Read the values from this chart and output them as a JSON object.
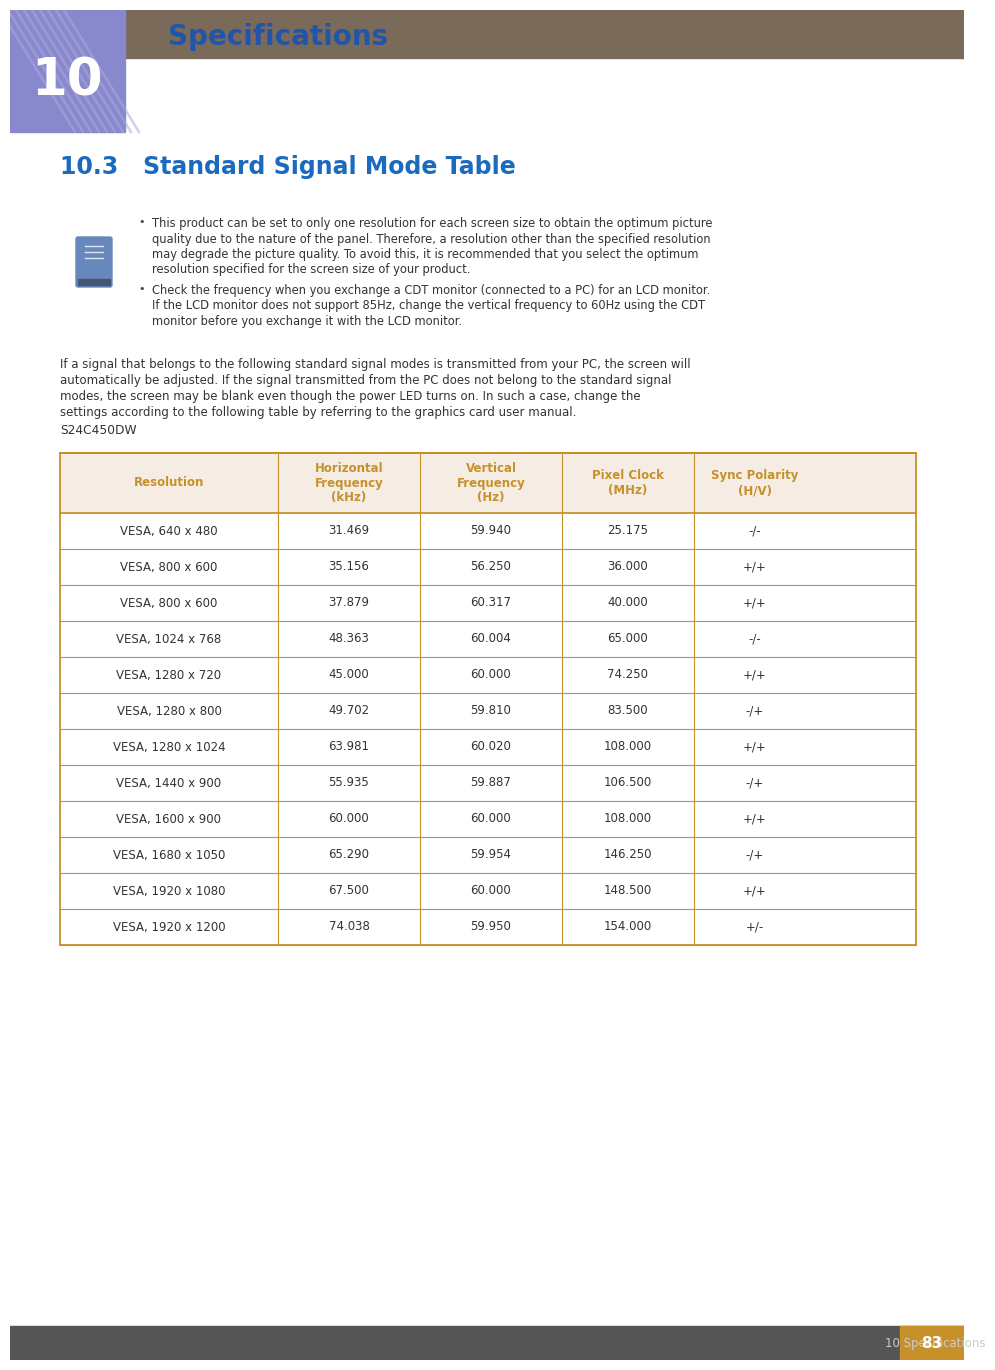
{
  "page_bg": "#ffffff",
  "header_bar_color": "#7a6a5a",
  "chapter_num": "10",
  "chapter_bg_color": "#8888cc",
  "chapter_title": "Specifications",
  "chapter_title_color": "#2255aa",
  "section_title": "10.3   Standard Signal Mode Table",
  "section_title_color": "#1a6bbf",
  "bullet1_lines": [
    "This product can be set to only one resolution for each screen size to obtain the optimum picture",
    "quality due to the nature of the panel. Therefore, a resolution other than the specified resolution",
    "may degrade the picture quality. To avoid this, it is recommended that you select the optimum",
    "resolution specified for the screen size of your product."
  ],
  "bullet2_lines": [
    "Check the frequency when you exchange a CDT monitor (connected to a PC) for an LCD monitor.",
    "If the LCD monitor does not support 85Hz, change the vertical frequency to 60Hz using the CDT",
    "monitor before you exchange it with the LCD monitor."
  ],
  "body_lines": [
    "If a signal that belongs to the following standard signal modes is transmitted from your PC, the screen will",
    "automatically be adjusted. If the signal transmitted from the PC does not belong to the standard signal",
    "modes, the screen may be blank even though the power LED turns on. In such a case, change the",
    "settings according to the following table by referring to the graphics card user manual."
  ],
  "model_label": "S24C450DW",
  "table_header_bg": "#f5ede3",
  "table_header_text_color": "#c8902a",
  "table_border_color": "#c8902a",
  "table_text_color": "#333333",
  "col_headers": [
    "Resolution",
    "Horizontal\nFrequency\n(kHz)",
    "Vertical\nFrequency\n(Hz)",
    "Pixel Clock\n(MHz)",
    "Sync Polarity\n(H/V)"
  ],
  "rows": [
    [
      "VESA, 640 x 480",
      "31.469",
      "59.940",
      "25.175",
      "-/-"
    ],
    [
      "VESA, 800 x 600",
      "35.156",
      "56.250",
      "36.000",
      "+/+"
    ],
    [
      "VESA, 800 x 600",
      "37.879",
      "60.317",
      "40.000",
      "+/+"
    ],
    [
      "VESA, 1024 x 768",
      "48.363",
      "60.004",
      "65.000",
      "-/-"
    ],
    [
      "VESA, 1280 x 720",
      "45.000",
      "60.000",
      "74.250",
      "+/+"
    ],
    [
      "VESA, 1280 x 800",
      "49.702",
      "59.810",
      "83.500",
      "-/+"
    ],
    [
      "VESA, 1280 x 1024",
      "63.981",
      "60.020",
      "108.000",
      "+/+"
    ],
    [
      "VESA, 1440 x 900",
      "55.935",
      "59.887",
      "106.500",
      "-/+"
    ],
    [
      "VESA, 1600 x 900",
      "60.000",
      "60.000",
      "108.000",
      "+/+"
    ],
    [
      "VESA, 1680 x 1050",
      "65.290",
      "59.954",
      "146.250",
      "-/+"
    ],
    [
      "VESA, 1920 x 1080",
      "67.500",
      "60.000",
      "148.500",
      "+/+"
    ],
    [
      "VESA, 1920 x 1200",
      "74.038",
      "59.950",
      "154.000",
      "+/-"
    ]
  ],
  "footer_bg": "#555555",
  "footer_text": "10 Specifications",
  "footer_page": "83",
  "footer_page_bg": "#c8902a"
}
